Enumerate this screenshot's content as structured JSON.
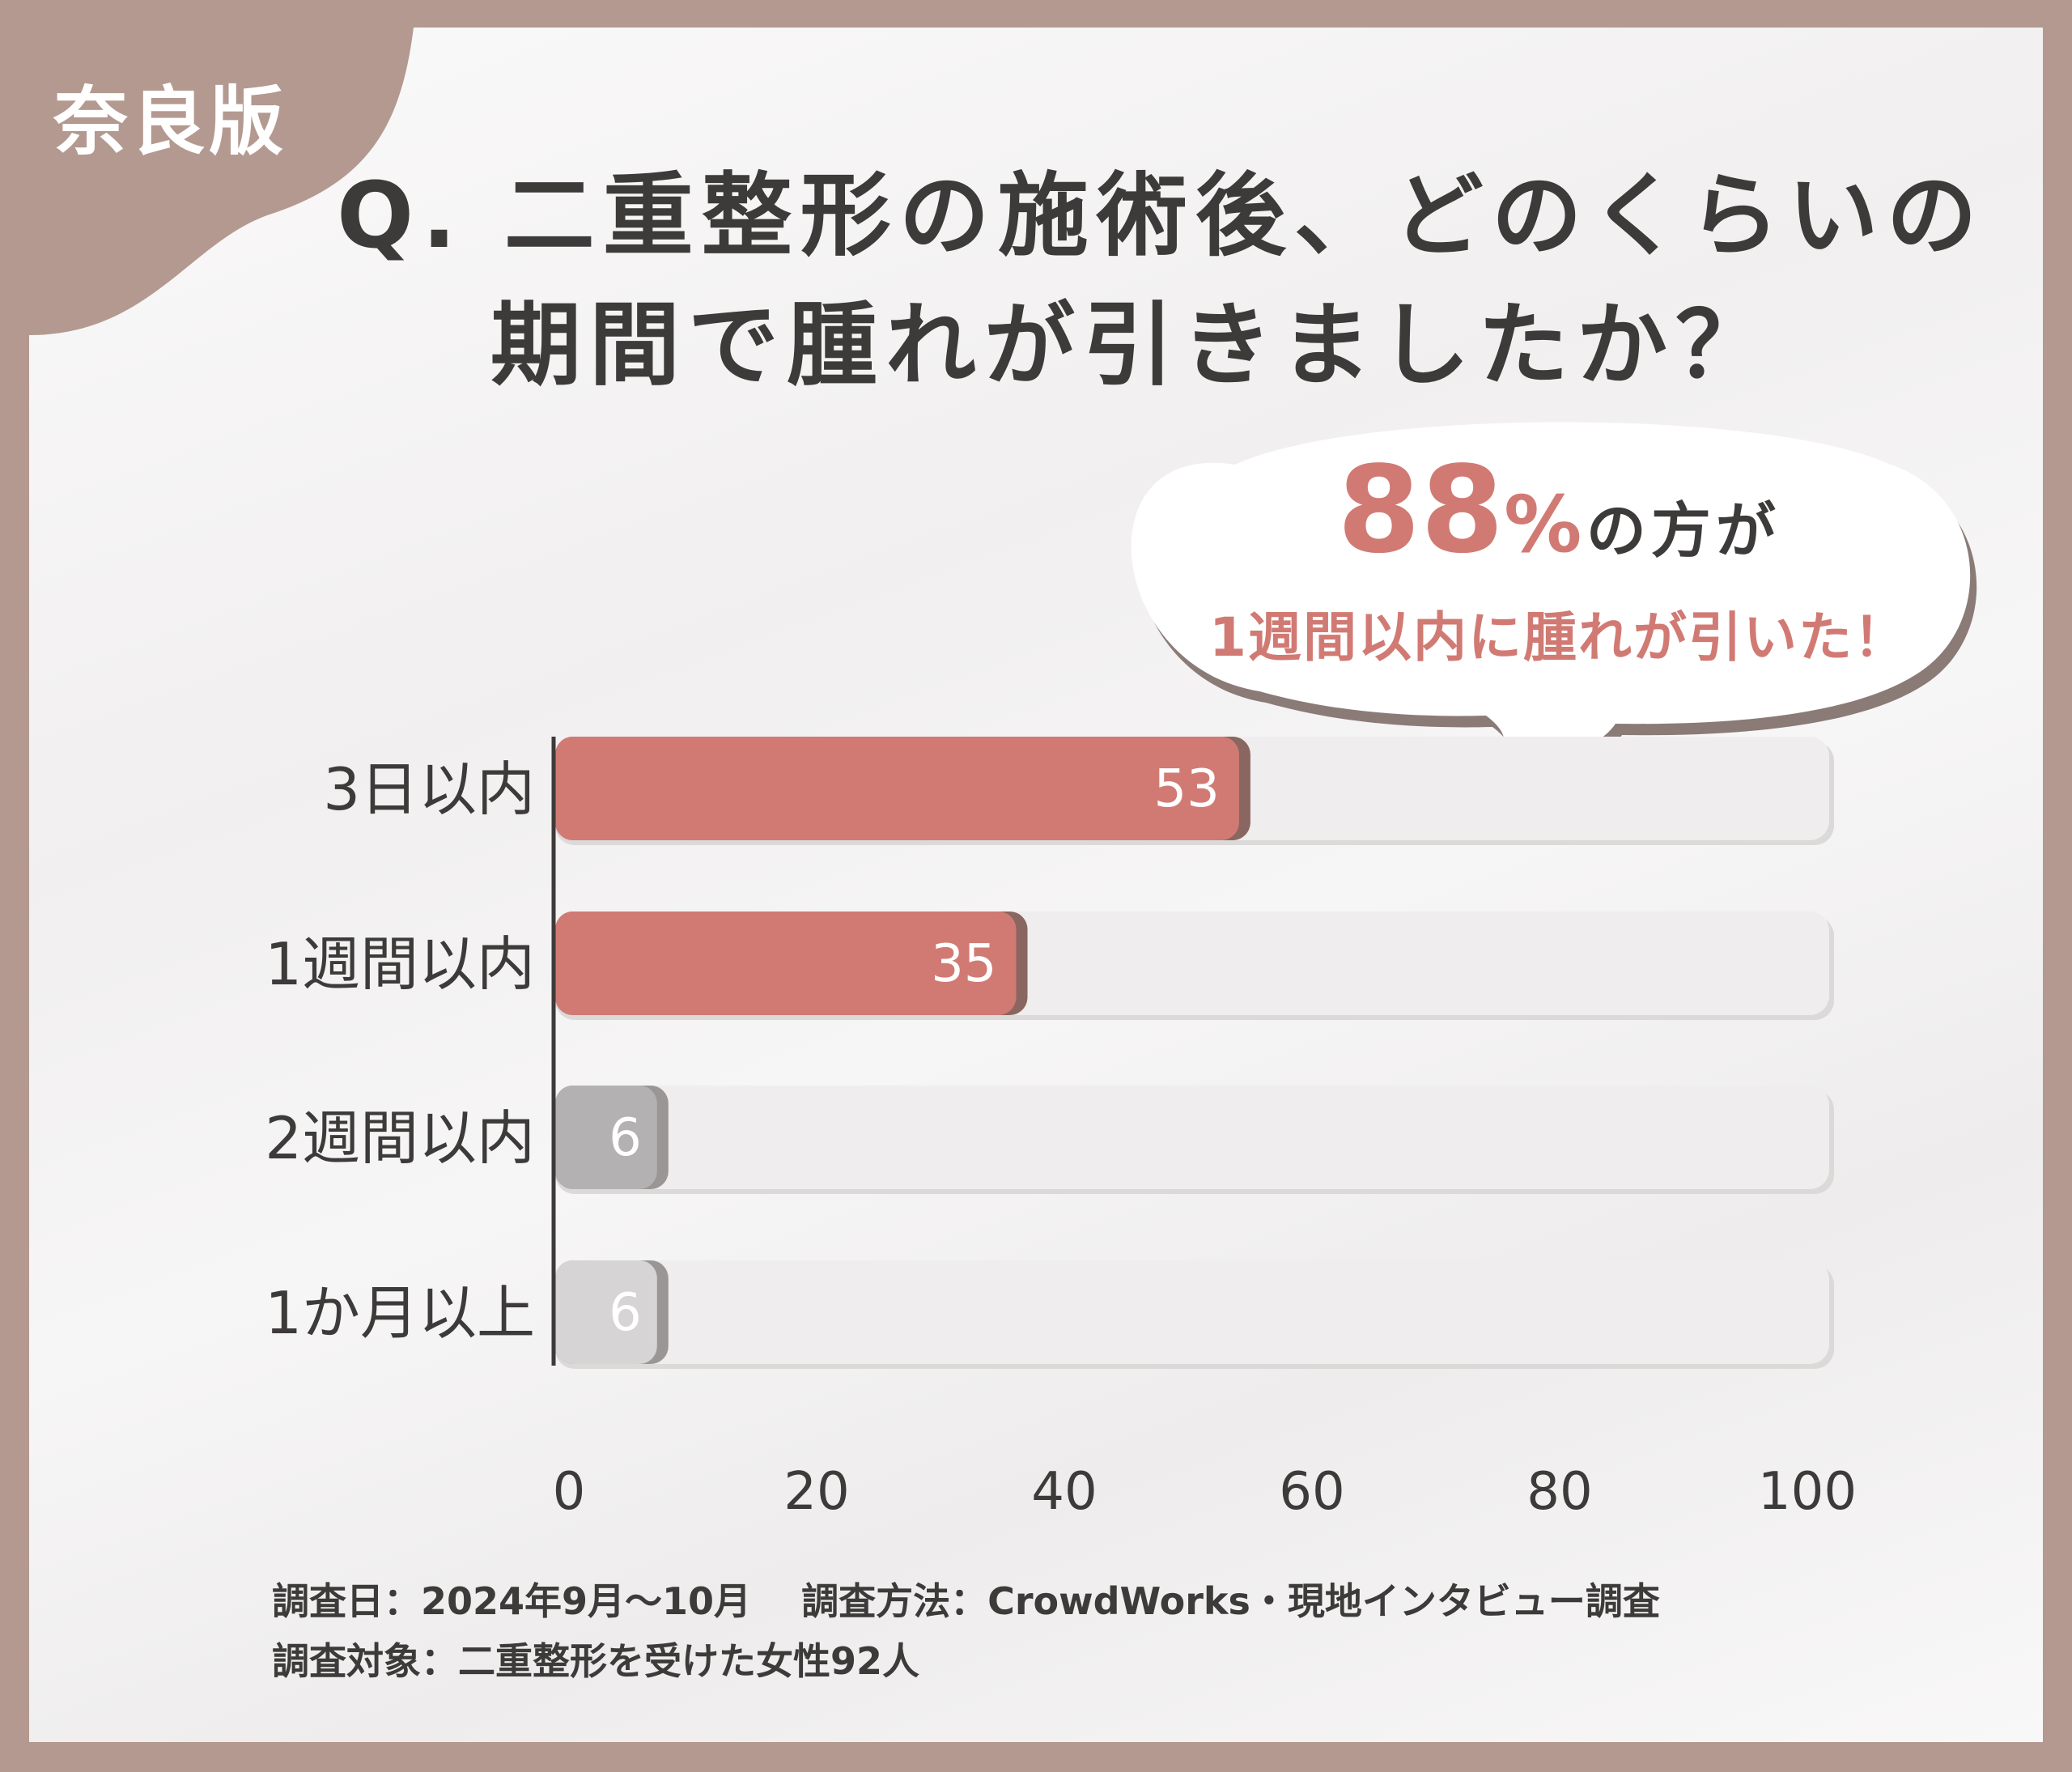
{
  "region_tag": "奈良版",
  "title": {
    "line1": "Q. 二重整形の施術後、どのくらいの",
    "line2": "期間で腫れが引きましたか？"
  },
  "callout": {
    "percent_number": "88",
    "percent_sign": "%",
    "suffix": "の方が",
    "subtitle": "1週間以内に腫れが引いた！"
  },
  "colors": {
    "frame": "#b39990",
    "highlight_bar": "#d17a74",
    "muted_bar": "#b3b1b1",
    "light_bar": "#d6d4d4",
    "track": "#efeded",
    "text": "#3d3a3a"
  },
  "chart_data": {
    "type": "bar",
    "orientation": "horizontal",
    "categories": [
      "3日以内",
      "1週間以内",
      "2週間以内",
      "1か月以上"
    ],
    "values": [
      53,
      35,
      6,
      6
    ],
    "value_labels": [
      "53",
      "35",
      "6",
      "6"
    ],
    "x_ticks": [
      "0",
      "20",
      "40",
      "60",
      "80",
      "100"
    ],
    "xlim": [
      0,
      100
    ],
    "grid": false,
    "legend": "none"
  },
  "footer": {
    "line1": "調査日：2024年9月〜10月　 調査方法：CrowdWorks・現地インタビュー調査",
    "line2": "調査対象：二重整形を受けた女性92人"
  }
}
